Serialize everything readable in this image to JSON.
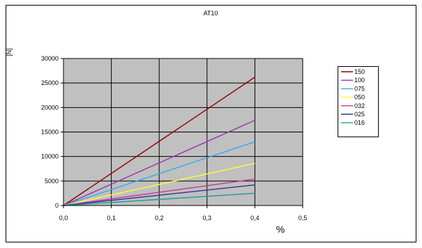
{
  "chart_data": {
    "type": "line",
    "title": "AT10",
    "xlabel": "%",
    "ylabel": "[N]",
    "xlim": [
      0,
      0.5
    ],
    "ylim": [
      0,
      30000
    ],
    "x_ticks": [
      "0,0",
      "0,1",
      "0,2",
      "0,3",
      "0,4",
      "0,5"
    ],
    "y_ticks": [
      "0",
      "5000",
      "10000",
      "15000",
      "20000",
      "25000",
      "30000"
    ],
    "grid": true,
    "legend_position": "right",
    "plot_background": "#c0c0c0",
    "series": [
      {
        "name": "150",
        "color": "#8b0000",
        "points": [
          [
            0,
            0
          ],
          [
            0.4,
            26200
          ]
        ]
      },
      {
        "name": "100",
        "color": "#9933aa",
        "points": [
          [
            0,
            0
          ],
          [
            0.4,
            17400
          ]
        ]
      },
      {
        "name": "075",
        "color": "#33aaee",
        "points": [
          [
            0,
            0
          ],
          [
            0.4,
            13000
          ]
        ]
      },
      {
        "name": "050",
        "color": "#ffff33",
        "points": [
          [
            0,
            0
          ],
          [
            0.4,
            8600
          ]
        ]
      },
      {
        "name": "032",
        "color": "#cc3399",
        "points": [
          [
            0,
            0
          ],
          [
            0.4,
            5400
          ]
        ]
      },
      {
        "name": "025",
        "color": "#333399",
        "points": [
          [
            0,
            0
          ],
          [
            0.4,
            4200
          ]
        ]
      },
      {
        "name": "016",
        "color": "#229999",
        "points": [
          [
            0,
            0
          ],
          [
            0.4,
            2500
          ]
        ]
      }
    ]
  }
}
